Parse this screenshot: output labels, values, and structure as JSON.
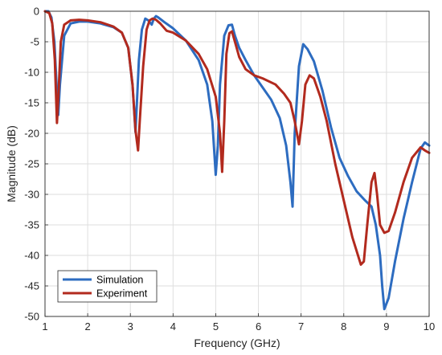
{
  "chart_data": {
    "type": "line",
    "title": "",
    "xlabel": "Frequency (GHz)",
    "ylabel": "Magnitude (dB)",
    "xlim": [
      1,
      10
    ],
    "ylim": [
      -50,
      0
    ],
    "xticks": [
      1,
      2,
      3,
      4,
      5,
      6,
      7,
      8,
      9,
      10
    ],
    "yticks": [
      0,
      -5,
      -10,
      -15,
      -20,
      -25,
      -30,
      -35,
      -40,
      -45,
      -50
    ],
    "grid": true,
    "legend_position": "bottom-left",
    "series": [
      {
        "name": "Simulation",
        "color": "#2d6cc0",
        "x": [
          1.0,
          1.08,
          1.15,
          1.22,
          1.27,
          1.31,
          1.35,
          1.45,
          1.6,
          1.8,
          2.0,
          2.3,
          2.6,
          2.8,
          2.95,
          3.05,
          3.12,
          3.16,
          3.2,
          3.27,
          3.35,
          3.42,
          3.5,
          3.55,
          3.6,
          3.65,
          3.8,
          4.0,
          4.3,
          4.6,
          4.8,
          4.92,
          5.0,
          5.05,
          5.1,
          5.2,
          5.3,
          5.38,
          5.45,
          5.55,
          5.7,
          5.9,
          6.1,
          6.3,
          6.5,
          6.65,
          6.75,
          6.8,
          6.85,
          6.95,
          7.05,
          7.15,
          7.3,
          7.5,
          7.7,
          7.9,
          8.1,
          8.3,
          8.5,
          8.65,
          8.75,
          8.85,
          8.9,
          8.95,
          9.05,
          9.2,
          9.4,
          9.6,
          9.8,
          9.9,
          10.0
        ],
        "values": [
          0,
          0,
          -1,
          -5,
          -12,
          -17,
          -12,
          -4,
          -2,
          -1.7,
          -1.7,
          -2,
          -2.6,
          -3.5,
          -6,
          -12,
          -19.8,
          -14,
          -8,
          -3,
          -1.2,
          -1.5,
          -2.2,
          -1.2,
          -0.8,
          -1,
          -1.8,
          -2.8,
          -4.8,
          -8,
          -12,
          -18,
          -26.8,
          -22,
          -12,
          -4,
          -2.3,
          -2.2,
          -4,
          -6,
          -8,
          -10.5,
          -12.5,
          -14.5,
          -17.5,
          -22,
          -28,
          -32,
          -20,
          -9,
          -5.4,
          -6.2,
          -8.2,
          -13,
          -19,
          -24,
          -27,
          -29.5,
          -31,
          -32,
          -35,
          -40,
          -45,
          -48.8,
          -47,
          -41,
          -34,
          -28,
          -22.5,
          -21.5,
          -22
        ]
      },
      {
        "name": "Experiment",
        "color": "#b22a1e",
        "x": [
          1.0,
          1.1,
          1.17,
          1.23,
          1.28,
          1.32,
          1.37,
          1.45,
          1.6,
          1.8,
          2.0,
          2.3,
          2.6,
          2.8,
          2.95,
          3.05,
          3.12,
          3.18,
          3.22,
          3.3,
          3.38,
          3.45,
          3.52,
          3.6,
          3.7,
          3.85,
          4.0,
          4.3,
          4.6,
          4.8,
          5.0,
          5.1,
          5.15,
          5.2,
          5.25,
          5.32,
          5.38,
          5.45,
          5.55,
          5.7,
          5.9,
          6.1,
          6.4,
          6.6,
          6.75,
          6.85,
          6.95,
          7.02,
          7.1,
          7.2,
          7.3,
          7.45,
          7.6,
          7.8,
          8.0,
          8.2,
          8.4,
          8.47,
          8.55,
          8.65,
          8.72,
          8.78,
          8.85,
          8.95,
          9.05,
          9.2,
          9.4,
          9.6,
          9.8,
          9.9,
          10.0
        ],
        "values": [
          0,
          -0.3,
          -2,
          -8,
          -18.3,
          -13,
          -5,
          -2.2,
          -1.5,
          -1.4,
          -1.5,
          -1.8,
          -2.5,
          -3.5,
          -6,
          -12,
          -19.5,
          -22.8,
          -18,
          -9,
          -3,
          -1.5,
          -1.2,
          -1.4,
          -2,
          -3.2,
          -3.5,
          -4.8,
          -7,
          -9.5,
          -14,
          -20,
          -26.3,
          -18,
          -7,
          -3.6,
          -3.3,
          -5,
          -7.5,
          -9.5,
          -10.5,
          -11,
          -12,
          -13.5,
          -15,
          -18,
          -21.8,
          -18,
          -12,
          -10.5,
          -11,
          -14,
          -18,
          -25,
          -31,
          -37,
          -41.5,
          -41,
          -35,
          -28,
          -26.5,
          -30,
          -35,
          -36.3,
          -36,
          -33,
          -28,
          -24,
          -22.3,
          -22.8,
          -23.2
        ]
      }
    ]
  }
}
